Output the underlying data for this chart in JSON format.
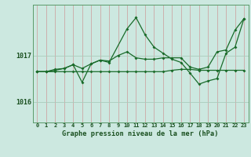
{
  "xlabel": "Graphe pression niveau de la mer (hPa)",
  "background_color": "#cce8e0",
  "grid_color_major": "#aaccbb",
  "grid_color_minor": "#bbddcc",
  "line_color": "#1a6b2a",
  "xlim": [
    -0.5,
    23.5
  ],
  "ylim": [
    1015.55,
    1018.1
  ],
  "yticks": [
    1016,
    1017
  ],
  "xticks": [
    0,
    1,
    2,
    3,
    4,
    5,
    6,
    7,
    8,
    9,
    10,
    11,
    12,
    13,
    14,
    15,
    16,
    17,
    18,
    19,
    20,
    21,
    22,
    23
  ],
  "series1_x": [
    0,
    1,
    2,
    3,
    4,
    5,
    6,
    7,
    8,
    9,
    10,
    11,
    12,
    13,
    14,
    15,
    16,
    17,
    18,
    19,
    20,
    21,
    22,
    23
  ],
  "series1_y": [
    1016.65,
    1016.65,
    1016.65,
    1016.65,
    1016.65,
    1016.65,
    1016.65,
    1016.65,
    1016.65,
    1016.65,
    1016.65,
    1016.65,
    1016.65,
    1016.65,
    1016.65,
    1016.68,
    1016.7,
    1016.7,
    1016.68,
    1016.68,
    1016.68,
    1016.68,
    1016.68,
    1016.68
  ],
  "series2_x": [
    0,
    1,
    2,
    3,
    4,
    5,
    6,
    7,
    8,
    9,
    10,
    11,
    12,
    13,
    14,
    15,
    16,
    17,
    18,
    19,
    20,
    21,
    22,
    23
  ],
  "series2_y": [
    1016.65,
    1016.65,
    1016.7,
    1016.72,
    1016.8,
    1016.72,
    1016.82,
    1016.9,
    1016.88,
    1017.0,
    1017.08,
    1016.95,
    1016.92,
    1016.92,
    1016.95,
    1016.95,
    1016.95,
    1016.75,
    1016.7,
    1016.75,
    1017.08,
    1017.12,
    1017.55,
    1017.8
  ],
  "series3_x": [
    0,
    1,
    2,
    3,
    4,
    5,
    6,
    7,
    8,
    10,
    11,
    12,
    13,
    14,
    15,
    16,
    17,
    18,
    19,
    20,
    21,
    22,
    23
  ],
  "series3_y": [
    1016.65,
    1016.65,
    1016.68,
    1016.72,
    1016.8,
    1016.42,
    1016.82,
    1016.9,
    1016.85,
    1017.58,
    1017.82,
    1017.45,
    1017.18,
    1017.05,
    1016.92,
    1016.85,
    1016.62,
    1016.38,
    1016.45,
    1016.5,
    1017.05,
    1017.18,
    1017.8
  ]
}
